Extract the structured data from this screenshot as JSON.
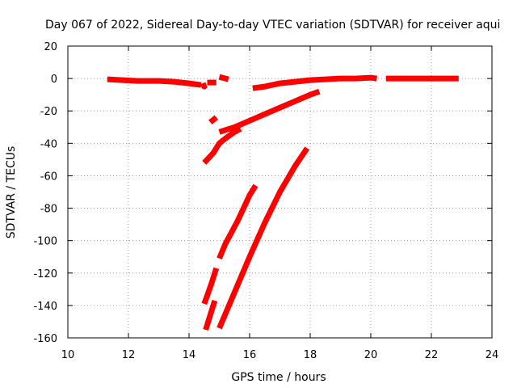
{
  "chart_data": {
    "type": "scatter",
    "title": "Day 067 of 2022, Sidereal Day-to-day VTEC variation (SDTVAR) for receiver aqui",
    "xlabel": "GPS time / hours",
    "ylabel": "SDTVAR / TECUs",
    "xlim": [
      10,
      24
    ],
    "ylim": [
      -160,
      20
    ],
    "xticks": [
      10,
      12,
      14,
      16,
      18,
      20,
      22,
      24
    ],
    "yticks": [
      -160,
      -140,
      -120,
      -100,
      -80,
      -60,
      -40,
      -20,
      0,
      20
    ],
    "grid": true,
    "legend": "none",
    "series_color": "#ff0000",
    "series": [
      {
        "x": [
          11.3,
          11.8,
          12.3,
          12.6,
          13.0,
          13.5,
          14.0,
          14.4
        ],
        "y": [
          -0.5,
          -1,
          -1.5,
          -1.5,
          -1.5,
          -2,
          -3,
          -4
        ]
      },
      {
        "x": [
          14.45,
          14.5,
          14.55
        ],
        "y": [
          -3,
          -5,
          -4
        ]
      },
      {
        "x": [
          14.6,
          14.9
        ],
        "y": [
          -2.5,
          -2.5
        ]
      },
      {
        "x": [
          15.0,
          15.1,
          15.3
        ],
        "y": [
          1,
          0.5,
          -0.5
        ]
      },
      {
        "x": [
          16.1,
          16.5,
          17.0,
          17.5,
          18.0,
          18.5,
          19.0,
          19.5,
          20.0,
          20.2
        ],
        "y": [
          -6,
          -5,
          -3,
          -2,
          -1,
          -0.5,
          0,
          0,
          0.5,
          0
        ]
      },
      {
        "x": [
          20.5,
          21.0,
          21.5,
          22.0,
          22.5,
          22.9
        ],
        "y": [
          0,
          0,
          0,
          0,
          0,
          0
        ]
      },
      {
        "x": [
          14.7,
          14.9
        ],
        "y": [
          -27,
          -24
        ]
      },
      {
        "x": [
          15.0,
          15.5,
          16.0,
          16.5,
          17.0,
          17.5,
          18.0,
          18.3
        ],
        "y": [
          -33,
          -30,
          -26,
          -22,
          -18,
          -14,
          -10,
          -8
        ]
      },
      {
        "x": [
          14.5,
          14.8,
          15.0,
          15.2,
          15.5,
          15.7
        ],
        "y": [
          -52,
          -46,
          -40,
          -37,
          -33,
          -31
        ]
      },
      {
        "x": [
          14.5,
          14.6,
          14.75,
          14.9
        ],
        "y": [
          -139,
          -134,
          -126,
          -117
        ]
      },
      {
        "x": [
          15.0,
          15.2,
          15.4,
          15.6,
          15.8,
          16.0,
          16.2
        ],
        "y": [
          -111,
          -102,
          -95,
          -88,
          -80,
          -72,
          -66
        ]
      },
      {
        "x": [
          14.55,
          14.65,
          14.75,
          14.85
        ],
        "y": [
          -155,
          -149,
          -143,
          -137
        ]
      },
      {
        "x": [
          15.0,
          15.5,
          16.0,
          16.5,
          17.0,
          17.5,
          17.9
        ],
        "y": [
          -154,
          -132,
          -110,
          -89,
          -70,
          -54,
          -43
        ]
      }
    ]
  }
}
